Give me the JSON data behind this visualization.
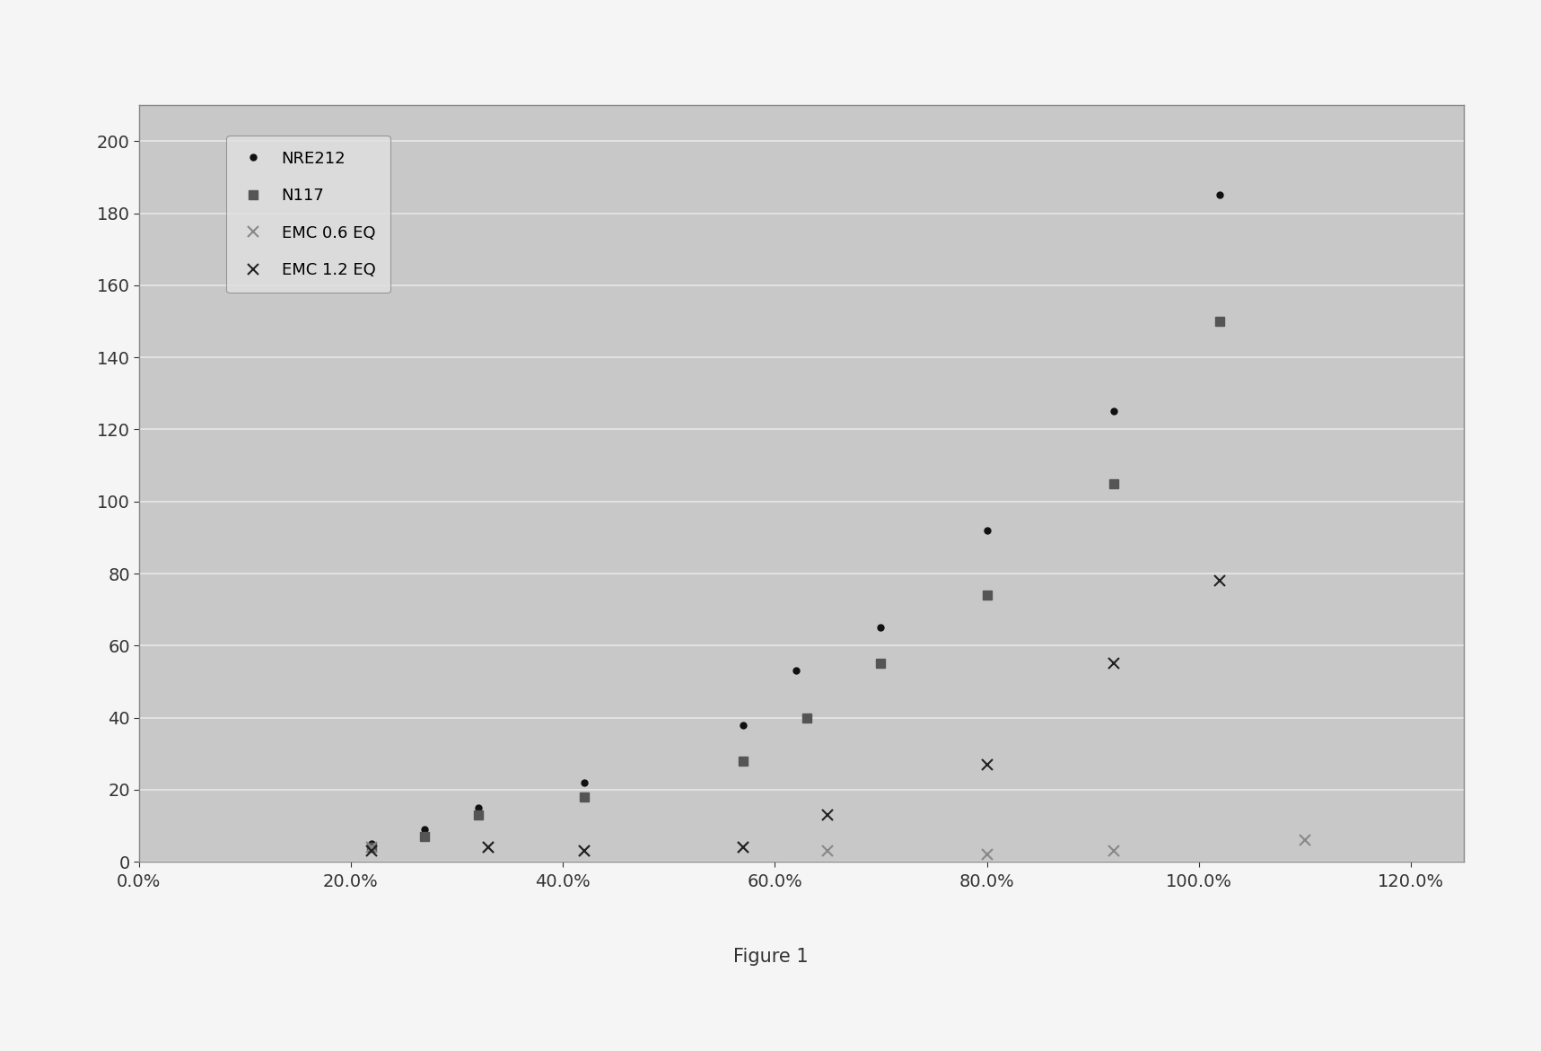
{
  "series": {
    "NRE212": {
      "x": [
        0.22,
        0.27,
        0.32,
        0.42,
        0.57,
        0.62,
        0.7,
        0.8,
        0.92,
        1.02
      ],
      "y": [
        5,
        9,
        15,
        22,
        38,
        53,
        65,
        92,
        125,
        185
      ],
      "marker": ".",
      "color": "#111111",
      "markersize": 10,
      "label": "NRE212"
    },
    "N117": {
      "x": [
        0.22,
        0.27,
        0.32,
        0.42,
        0.57,
        0.63,
        0.7,
        0.8,
        0.92,
        1.02
      ],
      "y": [
        4,
        7,
        13,
        18,
        28,
        40,
        55,
        74,
        105,
        150
      ],
      "marker": "s",
      "color": "#555555",
      "markersize": 7,
      "label": "N117"
    },
    "EMC_06": {
      "x": [
        0.22,
        0.33,
        0.42,
        0.57,
        0.65,
        0.8,
        0.92,
        1.1
      ],
      "y": [
        4,
        4,
        3,
        4,
        3,
        2,
        3,
        6
      ],
      "marker": "x",
      "color": "#888888",
      "markersize": 9,
      "label": "EMC 0.6 EQ"
    },
    "EMC_12": {
      "x": [
        0.22,
        0.33,
        0.42,
        0.57,
        0.65,
        0.8,
        0.92,
        1.02
      ],
      "y": [
        3,
        4,
        3,
        4,
        13,
        27,
        55,
        78
      ],
      "marker": "x",
      "color": "#222222",
      "markersize": 9,
      "label": "EMC 1.2 EQ"
    }
  },
  "xlim": [
    0.0,
    1.25
  ],
  "ylim": [
    0,
    210
  ],
  "xticks": [
    0.0,
    0.2,
    0.4,
    0.6,
    0.8,
    1.0,
    1.2
  ],
  "yticks": [
    0,
    20,
    40,
    60,
    80,
    100,
    120,
    140,
    160,
    180,
    200
  ],
  "figure_caption": "Figure 1",
  "plot_bg_color": "#c8c8c8",
  "outer_bg_color": "#f5f5f5",
  "grid_color": "#e8e8e8",
  "legend_bg": "#e0e0e0",
  "spine_color": "#888888"
}
